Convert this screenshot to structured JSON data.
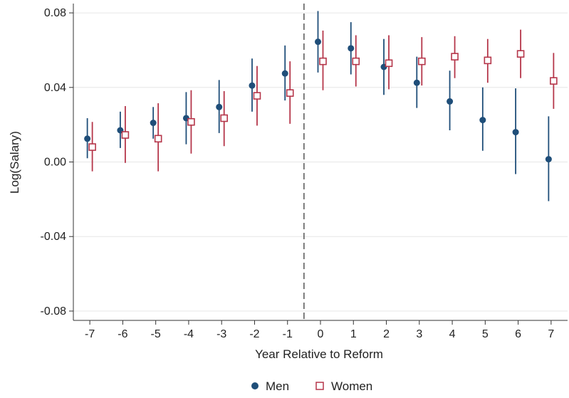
{
  "chart_data": {
    "type": "scatter",
    "title": "",
    "xlabel": "Year Relative to Reform",
    "ylabel": "Log(Salary)",
    "xlim": [
      -7.5,
      7.5
    ],
    "ylim": [
      -0.085,
      0.085
    ],
    "x_ticks": [
      -7,
      -6,
      -5,
      -4,
      -3,
      -2,
      -1,
      0,
      1,
      2,
      3,
      4,
      5,
      6,
      7
    ],
    "x_tick_labels": [
      "-7",
      "-6",
      "-5",
      "-4",
      "-3",
      "-2",
      "-1",
      "0",
      "1",
      "2",
      "3",
      "4",
      "5",
      "6",
      "7"
    ],
    "y_ticks": [
      -0.08,
      -0.04,
      0.0,
      0.04,
      0.08
    ],
    "y_tick_labels": [
      "-0.08",
      "-0.04",
      "0.00",
      "0.04",
      "0.08"
    ],
    "grid": true,
    "reference_line_x": -0.5,
    "legend_position": "bottom",
    "series": [
      {
        "name": "Men",
        "marker": "filled-circle",
        "color": "#1f4e79",
        "x": [
          -7,
          -6,
          -5,
          -4,
          -3,
          -2,
          -1,
          0,
          1,
          2,
          3,
          4,
          5,
          6,
          7
        ],
        "y": [
          0.0125,
          0.017,
          0.021,
          0.0235,
          0.0295,
          0.041,
          0.0475,
          0.0645,
          0.061,
          0.051,
          0.0425,
          0.0325,
          0.0225,
          0.016,
          0.0015
        ],
        "ci_low": [
          0.002,
          0.0075,
          0.0125,
          0.0095,
          0.0155,
          0.027,
          0.033,
          0.048,
          0.047,
          0.036,
          0.029,
          0.017,
          0.006,
          -0.0065,
          -0.021
        ],
        "ci_high": [
          0.0235,
          0.027,
          0.0295,
          0.0375,
          0.044,
          0.0555,
          0.0625,
          0.081,
          0.075,
          0.066,
          0.0565,
          0.049,
          0.04,
          0.0395,
          0.0245
        ]
      },
      {
        "name": "Women",
        "marker": "hollow-square",
        "color": "#b5364a",
        "x": [
          -7,
          -6,
          -5,
          -4,
          -3,
          -2,
          -1,
          0,
          1,
          2,
          3,
          4,
          5,
          6,
          7
        ],
        "y": [
          0.008,
          0.0145,
          0.0125,
          0.0215,
          0.0235,
          0.0355,
          0.037,
          0.054,
          0.054,
          0.053,
          0.054,
          0.0565,
          0.0545,
          0.058,
          0.0435
        ],
        "ci_low": [
          -0.005,
          -0.0005,
          -0.005,
          0.0045,
          0.0085,
          0.0195,
          0.0205,
          0.0385,
          0.0405,
          0.039,
          0.041,
          0.045,
          0.0425,
          0.045,
          0.0285
        ],
        "ci_high": [
          0.0215,
          0.03,
          0.0315,
          0.0385,
          0.038,
          0.0515,
          0.054,
          0.0705,
          0.068,
          0.068,
          0.067,
          0.0675,
          0.066,
          0.071,
          0.0585
        ]
      }
    ]
  }
}
